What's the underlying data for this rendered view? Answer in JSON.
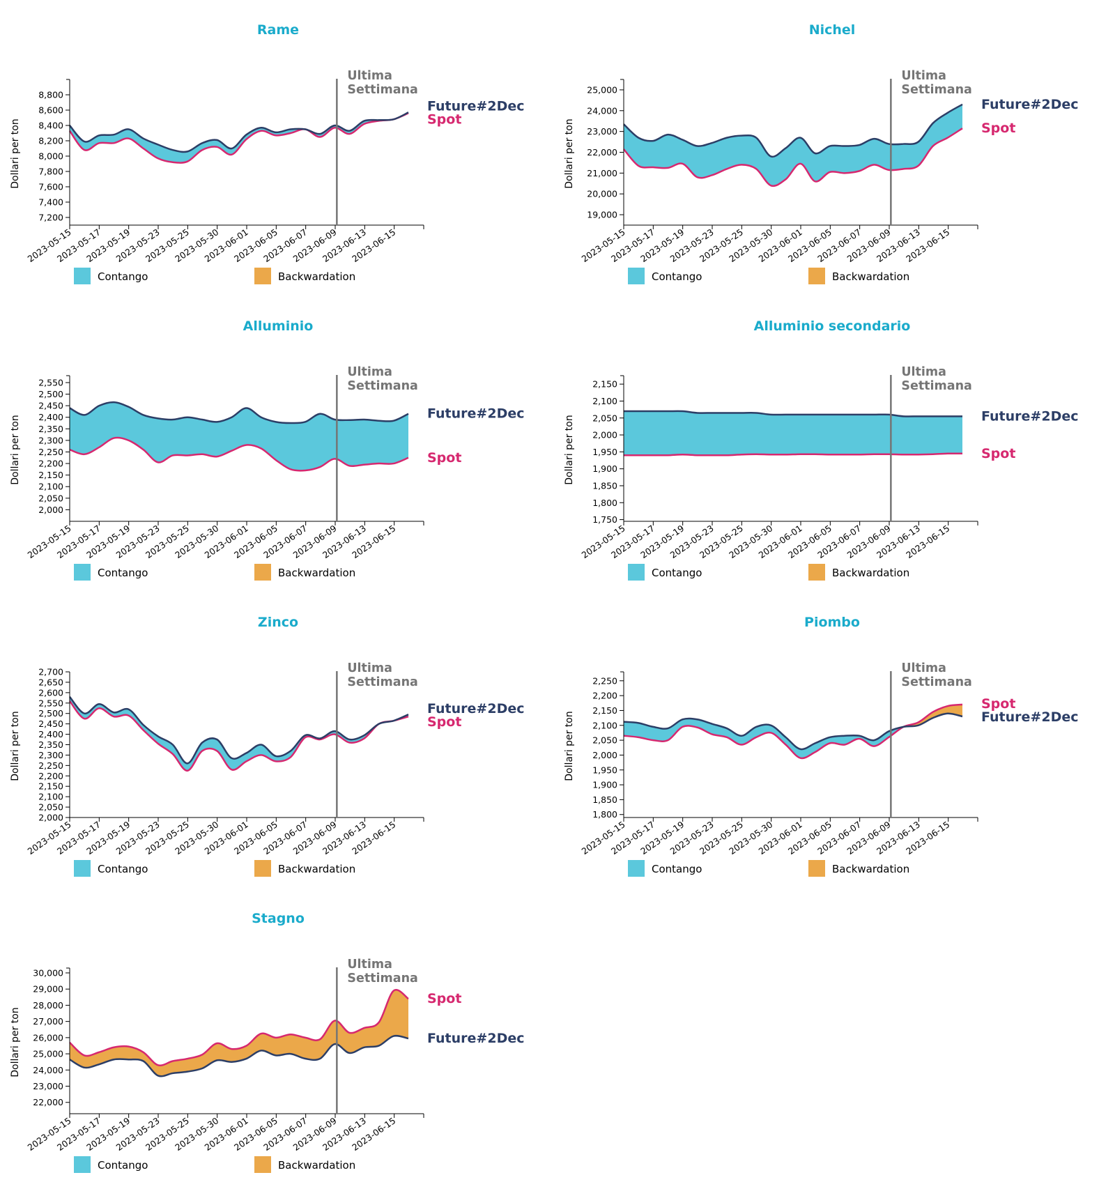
{
  "chart_data": [
    {
      "type": "area",
      "title": "Rame",
      "ylabel": "Dollari per ton",
      "ylim": [
        7100,
        9000
      ],
      "yticks": [
        7200,
        7400,
        7600,
        7800,
        8000,
        8200,
        8400,
        8600,
        8800
      ],
      "x": [
        "2023-05-15",
        "2023-05-16",
        "2023-05-17",
        "2023-05-18",
        "2023-05-19",
        "2023-05-22",
        "2023-05-23",
        "2023-05-24",
        "2023-05-25",
        "2023-05-26",
        "2023-05-30",
        "2023-05-31",
        "2023-06-01",
        "2023-06-02",
        "2023-06-05",
        "2023-06-06",
        "2023-06-07",
        "2023-06-08",
        "2023-06-09",
        "2023-06-12",
        "2023-06-13",
        "2023-06-14",
        "2023-06-15",
        "2023-06-16"
      ],
      "xticks": [
        "2023-05-15",
        "2023-05-17",
        "2023-05-19",
        "2023-05-23",
        "2023-05-25",
        "2023-05-30",
        "2023-06-01",
        "2023-06-05",
        "2023-06-07",
        "2023-06-09",
        "2023-06-13",
        "2023-06-15"
      ],
      "marker_date": "2023-06-09",
      "marker_label": [
        "Ultima",
        "Settimana"
      ],
      "series": [
        {
          "name": "Future#2Dec",
          "values": [
            8400,
            8190,
            8270,
            8280,
            8350,
            8230,
            8150,
            8080,
            8060,
            8170,
            8210,
            8100,
            8280,
            8370,
            8310,
            8350,
            8350,
            8290,
            8400,
            8330,
            8460,
            8470,
            8480,
            8570
          ]
        },
        {
          "name": "Spot",
          "values": [
            8330,
            8080,
            8170,
            8170,
            8230,
            8100,
            7970,
            7920,
            7930,
            8080,
            8120,
            8020,
            8220,
            8330,
            8270,
            8300,
            8350,
            8250,
            8370,
            8290,
            8420,
            8460,
            8480,
            8560
          ]
        }
      ]
    },
    {
      "type": "area",
      "title": "Nichel",
      "ylabel": "Dollari per ton",
      "ylim": [
        18500,
        25500
      ],
      "yticks": [
        19000,
        20000,
        21000,
        22000,
        23000,
        24000,
        25000
      ],
      "x": [
        "2023-05-15",
        "2023-05-16",
        "2023-05-17",
        "2023-05-18",
        "2023-05-19",
        "2023-05-22",
        "2023-05-23",
        "2023-05-24",
        "2023-05-25",
        "2023-05-26",
        "2023-05-30",
        "2023-05-31",
        "2023-06-01",
        "2023-06-02",
        "2023-06-05",
        "2023-06-06",
        "2023-06-07",
        "2023-06-08",
        "2023-06-09",
        "2023-06-12",
        "2023-06-13",
        "2023-06-14",
        "2023-06-15",
        "2023-06-16"
      ],
      "xticks": [
        "2023-05-15",
        "2023-05-17",
        "2023-05-19",
        "2023-05-23",
        "2023-05-25",
        "2023-05-30",
        "2023-06-01",
        "2023-06-05",
        "2023-06-07",
        "2023-06-09",
        "2023-06-13",
        "2023-06-15"
      ],
      "marker_date": "2023-06-09",
      "marker_label": [
        "Ultima",
        "Settimana"
      ],
      "series": [
        {
          "name": "Future#2Dec",
          "values": [
            23350,
            22700,
            22550,
            22850,
            22600,
            22300,
            22450,
            22700,
            22800,
            22700,
            21800,
            22200,
            22700,
            21950,
            22300,
            22300,
            22350,
            22650,
            22400,
            22400,
            22500,
            23400,
            23900,
            24300
          ]
        },
        {
          "name": "Spot",
          "values": [
            22150,
            21350,
            21280,
            21250,
            21450,
            20800,
            20900,
            21200,
            21400,
            21200,
            20400,
            20700,
            21450,
            20600,
            21050,
            21000,
            21100,
            21400,
            21150,
            21200,
            21350,
            22300,
            22700,
            23150
          ]
        }
      ]
    },
    {
      "type": "area",
      "title": "Alluminio",
      "ylabel": "Dollari per ton",
      "ylim": [
        1950,
        2580
      ],
      "yticks": [
        2000,
        2050,
        2100,
        2150,
        2200,
        2250,
        2300,
        2350,
        2400,
        2450,
        2500,
        2550
      ],
      "x": [
        "2023-05-15",
        "2023-05-16",
        "2023-05-17",
        "2023-05-18",
        "2023-05-19",
        "2023-05-22",
        "2023-05-23",
        "2023-05-24",
        "2023-05-25",
        "2023-05-26",
        "2023-05-30",
        "2023-05-31",
        "2023-06-01",
        "2023-06-02",
        "2023-06-05",
        "2023-06-06",
        "2023-06-07",
        "2023-06-08",
        "2023-06-09",
        "2023-06-12",
        "2023-06-13",
        "2023-06-14",
        "2023-06-15",
        "2023-06-16"
      ],
      "xticks": [
        "2023-05-15",
        "2023-05-17",
        "2023-05-19",
        "2023-05-23",
        "2023-05-25",
        "2023-05-30",
        "2023-06-01",
        "2023-06-05",
        "2023-06-07",
        "2023-06-09",
        "2023-06-13",
        "2023-06-15"
      ],
      "marker_date": "2023-06-09",
      "marker_label": [
        "Ultima",
        "Settimana"
      ],
      "series": [
        {
          "name": "Future#2Dec",
          "values": [
            2440,
            2410,
            2450,
            2465,
            2445,
            2410,
            2395,
            2390,
            2400,
            2390,
            2380,
            2400,
            2440,
            2400,
            2380,
            2375,
            2380,
            2415,
            2390,
            2388,
            2390,
            2385,
            2385,
            2415
          ]
        },
        {
          "name": "Spot",
          "values": [
            2260,
            2240,
            2270,
            2310,
            2300,
            2260,
            2205,
            2235,
            2235,
            2240,
            2230,
            2255,
            2280,
            2265,
            2215,
            2175,
            2170,
            2185,
            2220,
            2190,
            2195,
            2200,
            2200,
            2225
          ]
        }
      ]
    },
    {
      "type": "area",
      "title": "Alluminio secondario",
      "ylabel": "Dollari per ton",
      "ylim": [
        1745,
        2175
      ],
      "yticks": [
        1750,
        1800,
        1850,
        1900,
        1950,
        2000,
        2050,
        2100,
        2150
      ],
      "x": [
        "2023-05-15",
        "2023-05-16",
        "2023-05-17",
        "2023-05-18",
        "2023-05-19",
        "2023-05-22",
        "2023-05-23",
        "2023-05-24",
        "2023-05-25",
        "2023-05-26",
        "2023-05-30",
        "2023-05-31",
        "2023-06-01",
        "2023-06-02",
        "2023-06-05",
        "2023-06-06",
        "2023-06-07",
        "2023-06-08",
        "2023-06-09",
        "2023-06-12",
        "2023-06-13",
        "2023-06-14",
        "2023-06-15",
        "2023-06-16"
      ],
      "xticks": [
        "2023-05-15",
        "2023-05-17",
        "2023-05-19",
        "2023-05-23",
        "2023-05-25",
        "2023-05-30",
        "2023-06-01",
        "2023-06-05",
        "2023-06-07",
        "2023-06-09",
        "2023-06-13",
        "2023-06-15"
      ],
      "marker_date": "2023-06-09",
      "marker_label": [
        "Ultima",
        "Settimana"
      ],
      "series": [
        {
          "name": "Future#2Dec",
          "values": [
            2070,
            2070,
            2070,
            2070,
            2070,
            2065,
            2065,
            2065,
            2065,
            2065,
            2060,
            2060,
            2060,
            2060,
            2060,
            2060,
            2060,
            2060,
            2060,
            2055,
            2055,
            2055,
            2055,
            2055
          ]
        },
        {
          "name": "Spot",
          "values": [
            1940,
            1940,
            1940,
            1940,
            1942,
            1940,
            1940,
            1940,
            1942,
            1943,
            1942,
            1942,
            1943,
            1943,
            1942,
            1942,
            1942,
            1943,
            1943,
            1942,
            1942,
            1943,
            1945,
            1945
          ]
        }
      ]
    },
    {
      "type": "area",
      "title": "Zinco",
      "ylabel": "Dollari per ton",
      "ylim": [
        2000,
        2700
      ],
      "yticks": [
        2000,
        2050,
        2100,
        2150,
        2200,
        2250,
        2300,
        2350,
        2400,
        2450,
        2500,
        2550,
        2600,
        2650,
        2700
      ],
      "x": [
        "2023-05-15",
        "2023-05-16",
        "2023-05-17",
        "2023-05-18",
        "2023-05-19",
        "2023-05-22",
        "2023-05-23",
        "2023-05-24",
        "2023-05-25",
        "2023-05-26",
        "2023-05-30",
        "2023-05-31",
        "2023-06-01",
        "2023-06-02",
        "2023-06-05",
        "2023-06-06",
        "2023-06-07",
        "2023-06-08",
        "2023-06-09",
        "2023-06-12",
        "2023-06-13",
        "2023-06-14",
        "2023-06-15",
        "2023-06-16"
      ],
      "xticks": [
        "2023-05-15",
        "2023-05-17",
        "2023-05-19",
        "2023-05-23",
        "2023-05-25",
        "2023-05-30",
        "2023-06-01",
        "2023-06-05",
        "2023-06-07",
        "2023-06-09",
        "2023-06-13",
        "2023-06-15"
      ],
      "marker_date": "2023-06-09",
      "marker_label": [
        "Ultima",
        "Settimana"
      ],
      "series": [
        {
          "name": "Future#2Dec",
          "values": [
            2580,
            2500,
            2545,
            2505,
            2520,
            2445,
            2390,
            2350,
            2260,
            2360,
            2375,
            2285,
            2310,
            2350,
            2295,
            2320,
            2395,
            2380,
            2415,
            2375,
            2395,
            2450,
            2465,
            2495
          ]
        },
        {
          "name": "Spot",
          "values": [
            2560,
            2475,
            2525,
            2485,
            2490,
            2420,
            2355,
            2305,
            2225,
            2320,
            2320,
            2230,
            2270,
            2300,
            2270,
            2290,
            2385,
            2375,
            2400,
            2360,
            2380,
            2450,
            2465,
            2485
          ]
        }
      ]
    },
    {
      "type": "area",
      "title": "Piombo",
      "ylabel": "Dollari per ton",
      "ylim": [
        1790,
        2280
      ],
      "yticks": [
        1800,
        1850,
        1900,
        1950,
        2000,
        2050,
        2100,
        2150,
        2200,
        2250
      ],
      "x": [
        "2023-05-15",
        "2023-05-16",
        "2023-05-17",
        "2023-05-18",
        "2023-05-19",
        "2023-05-22",
        "2023-05-23",
        "2023-05-24",
        "2023-05-25",
        "2023-05-26",
        "2023-05-30",
        "2023-05-31",
        "2023-06-01",
        "2023-06-02",
        "2023-06-05",
        "2023-06-06",
        "2023-06-07",
        "2023-06-08",
        "2023-06-09",
        "2023-06-12",
        "2023-06-13",
        "2023-06-14",
        "2023-06-15",
        "2023-06-16"
      ],
      "xticks": [
        "2023-05-15",
        "2023-05-17",
        "2023-05-19",
        "2023-05-23",
        "2023-05-25",
        "2023-05-30",
        "2023-06-01",
        "2023-06-05",
        "2023-06-07",
        "2023-06-09",
        "2023-06-13",
        "2023-06-15"
      ],
      "marker_date": "2023-06-09",
      "marker_label": [
        "Ultima",
        "Settimana"
      ],
      "series": [
        {
          "name": "Future#2Dec",
          "values": [
            2112,
            2108,
            2095,
            2090,
            2120,
            2120,
            2105,
            2090,
            2065,
            2095,
            2100,
            2060,
            2020,
            2040,
            2060,
            2065,
            2065,
            2050,
            2080,
            2095,
            2100,
            2125,
            2140,
            2130
          ]
        },
        {
          "name": "Spot",
          "values": [
            2065,
            2060,
            2050,
            2050,
            2095,
            2093,
            2070,
            2060,
            2035,
            2060,
            2075,
            2035,
            1990,
            2010,
            2040,
            2035,
            2055,
            2030,
            2060,
            2095,
            2110,
            2145,
            2165,
            2170
          ]
        }
      ]
    },
    {
      "type": "area",
      "title": "Stagno",
      "ylabel": "Dollari per ton",
      "ylim": [
        21300,
        30300
      ],
      "yticks": [
        22000,
        23000,
        24000,
        25000,
        26000,
        27000,
        28000,
        29000,
        30000
      ],
      "x": [
        "2023-05-15",
        "2023-05-16",
        "2023-05-17",
        "2023-05-18",
        "2023-05-19",
        "2023-05-22",
        "2023-05-23",
        "2023-05-24",
        "2023-05-25",
        "2023-05-26",
        "2023-05-30",
        "2023-05-31",
        "2023-06-01",
        "2023-06-02",
        "2023-06-05",
        "2023-06-06",
        "2023-06-07",
        "2023-06-08",
        "2023-06-09",
        "2023-06-12",
        "2023-06-13",
        "2023-06-14",
        "2023-06-15",
        "2023-06-16"
      ],
      "xticks": [
        "2023-05-15",
        "2023-05-17",
        "2023-05-19",
        "2023-05-23",
        "2023-05-25",
        "2023-05-30",
        "2023-06-01",
        "2023-06-05",
        "2023-06-07",
        "2023-06-09",
        "2023-06-13",
        "2023-06-15"
      ],
      "marker_date": "2023-06-09",
      "marker_label": [
        "Ultima",
        "Settimana"
      ],
      "series": [
        {
          "name": "Future#2Dec",
          "values": [
            24650,
            24150,
            24350,
            24650,
            24650,
            24550,
            23650,
            23800,
            23900,
            24100,
            24600,
            24500,
            24700,
            25200,
            24900,
            25000,
            24700,
            24700,
            25600,
            25050,
            25400,
            25500,
            26100,
            25950
          ]
        },
        {
          "name": "Spot",
          "values": [
            25700,
            24900,
            25100,
            25400,
            25450,
            25100,
            24300,
            24550,
            24700,
            24950,
            25650,
            25300,
            25500,
            26250,
            26000,
            26200,
            26000,
            25900,
            27050,
            26300,
            26600,
            26950,
            28900,
            28400
          ]
        }
      ]
    }
  ],
  "legend": {
    "contango": "Contango",
    "backwardation": "Backwardation"
  },
  "colors": {
    "title": "#1AABCB",
    "future": "#2C3E66",
    "spot": "#D6286F",
    "contango": "#5BC8DC",
    "backwardation": "#EBA84A",
    "marker": "#757575"
  }
}
